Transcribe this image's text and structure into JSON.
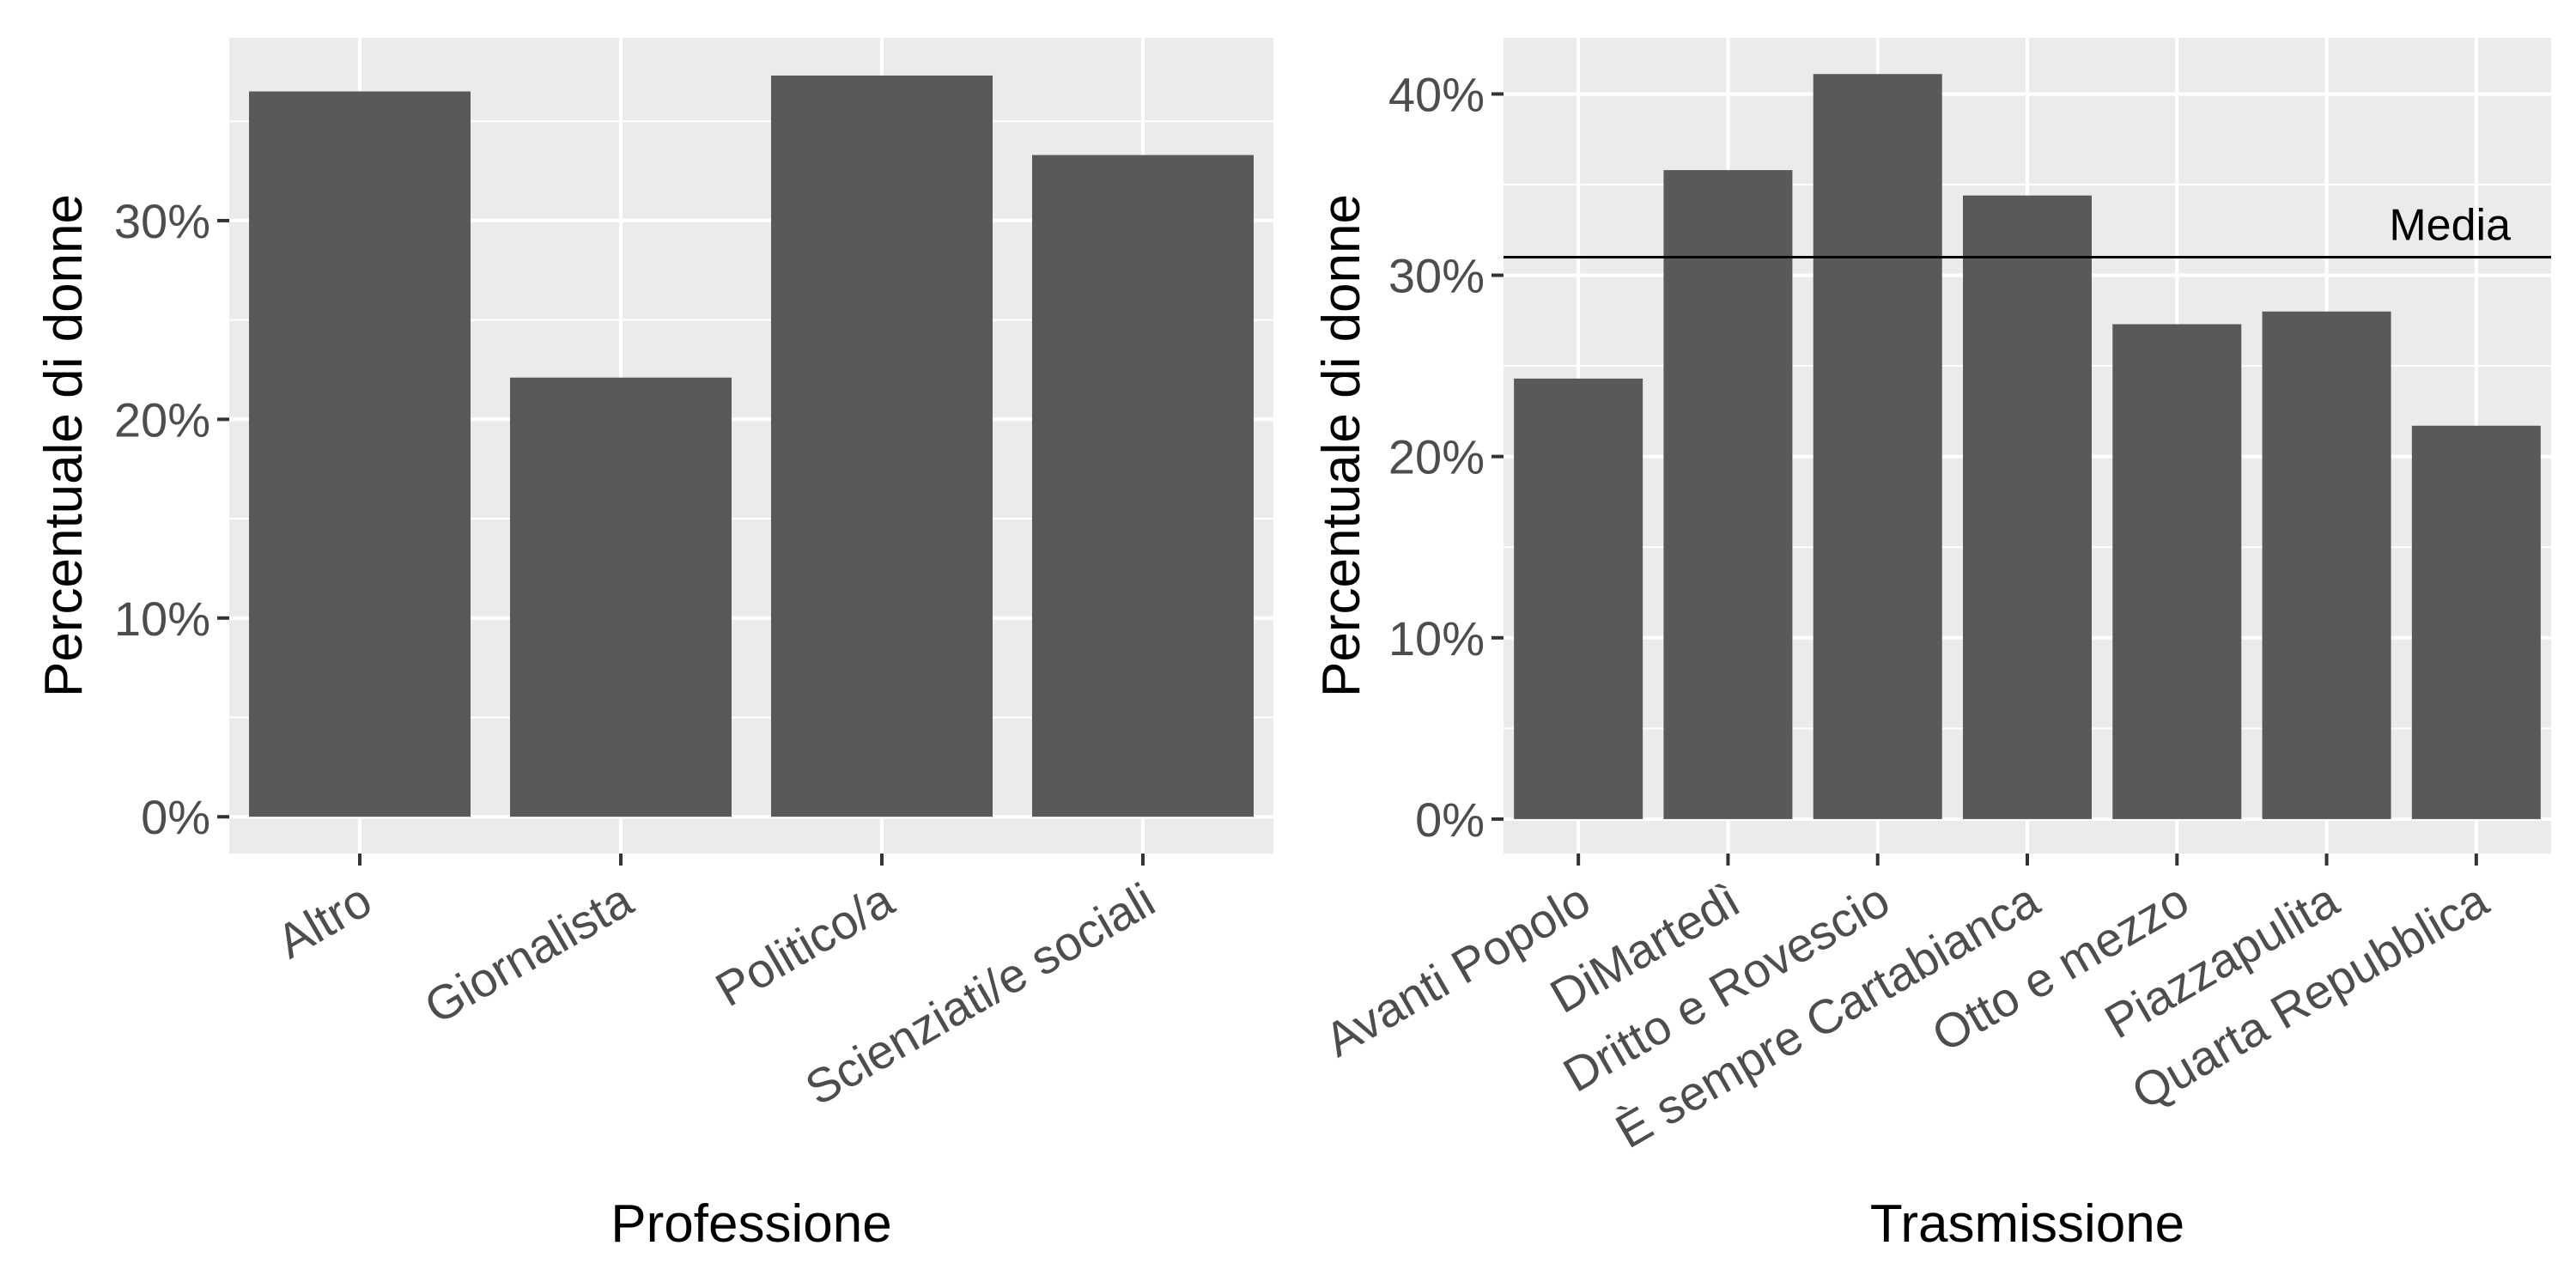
{
  "chart_data": [
    {
      "type": "bar",
      "xlabel": "Professione",
      "ylabel": "Percentuale di donne",
      "categories": [
        "Altro",
        "Giornalista",
        "Politico/a",
        "Scienziati/e sociali"
      ],
      "values": [
        36.5,
        22.1,
        37.3,
        33.3
      ],
      "ylim": [
        -1.85,
        39.2
      ],
      "yticks": [
        0,
        10,
        20,
        30
      ],
      "ytick_labels": [
        "0%",
        "10%",
        "20%",
        "30%"
      ],
      "grid": true,
      "bar_color": "#595959",
      "panel_color": "#ebebeb"
    },
    {
      "type": "bar",
      "xlabel": "Trasmissione",
      "ylabel": "Percentuale di donne",
      "categories": [
        "Avanti Popolo",
        "DiMartedì",
        "Dritto e Rovescio",
        "È sempre Cartabianca",
        "Otto e mezzo",
        "Piazzapulita",
        "Quarta Repubblica"
      ],
      "values": [
        24.3,
        35.8,
        41.1,
        34.4,
        27.3,
        28.0,
        21.7
      ],
      "ylim": [
        -1.9,
        43.1
      ],
      "yticks": [
        0,
        10,
        20,
        30,
        40
      ],
      "ytick_labels": [
        "0%",
        "10%",
        "20%",
        "30%",
        "40%"
      ],
      "reference_line": {
        "value": 31.0,
        "label": "Media"
      },
      "grid": true,
      "bar_color": "#595959",
      "panel_color": "#ebebeb"
    }
  ]
}
